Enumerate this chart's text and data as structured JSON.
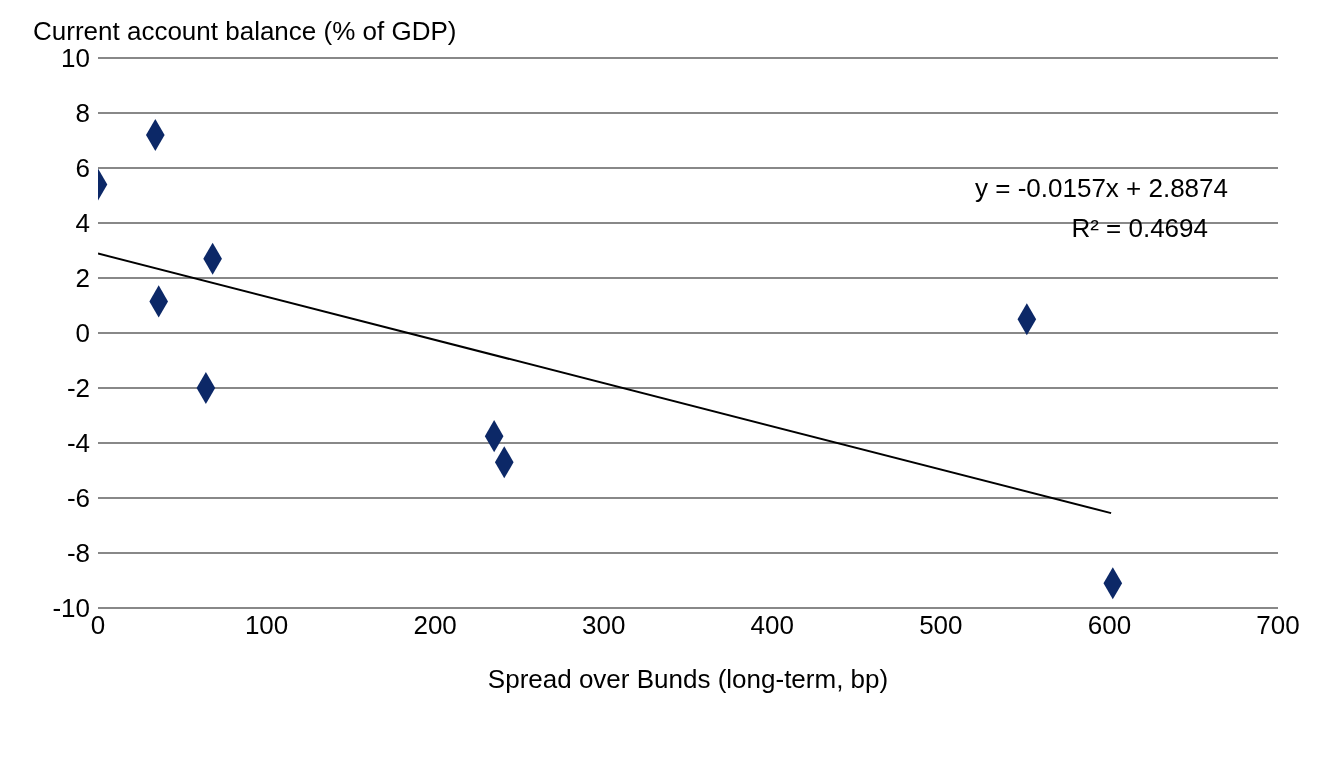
{
  "chart_data": {
    "type": "scatter",
    "xlabel": "Spread over Bunds (long-term, bp)",
    "ylabel": "Current account balance (% of GDP)",
    "xlim": [
      0,
      700
    ],
    "xticks": [
      0,
      100,
      200,
      300,
      400,
      500,
      600,
      700
    ],
    "ylim": [
      -10,
      10
    ],
    "yticks": [
      -10,
      -8,
      -6,
      -4,
      -2,
      0,
      2,
      4,
      6,
      8,
      10
    ],
    "grid": "y",
    "series": [
      {
        "marker": "diamond",
        "color": "#0c2867",
        "x": [
          0,
          34,
          68,
          36,
          64,
          235,
          241,
          551,
          602
        ],
        "values": [
          5.4,
          7.2,
          2.7,
          1.15,
          -2.0,
          -3.75,
          -4.7,
          0.5,
          -9.1
        ]
      },
      {
        "type": "line",
        "marker": "none",
        "color": "#000000",
        "x": [
          0,
          601
        ],
        "values": [
          2.89,
          -6.55
        ]
      }
    ],
    "annotations": [
      "y = -0.0157x + 2.8874",
      "R² = 0.4694"
    ]
  }
}
